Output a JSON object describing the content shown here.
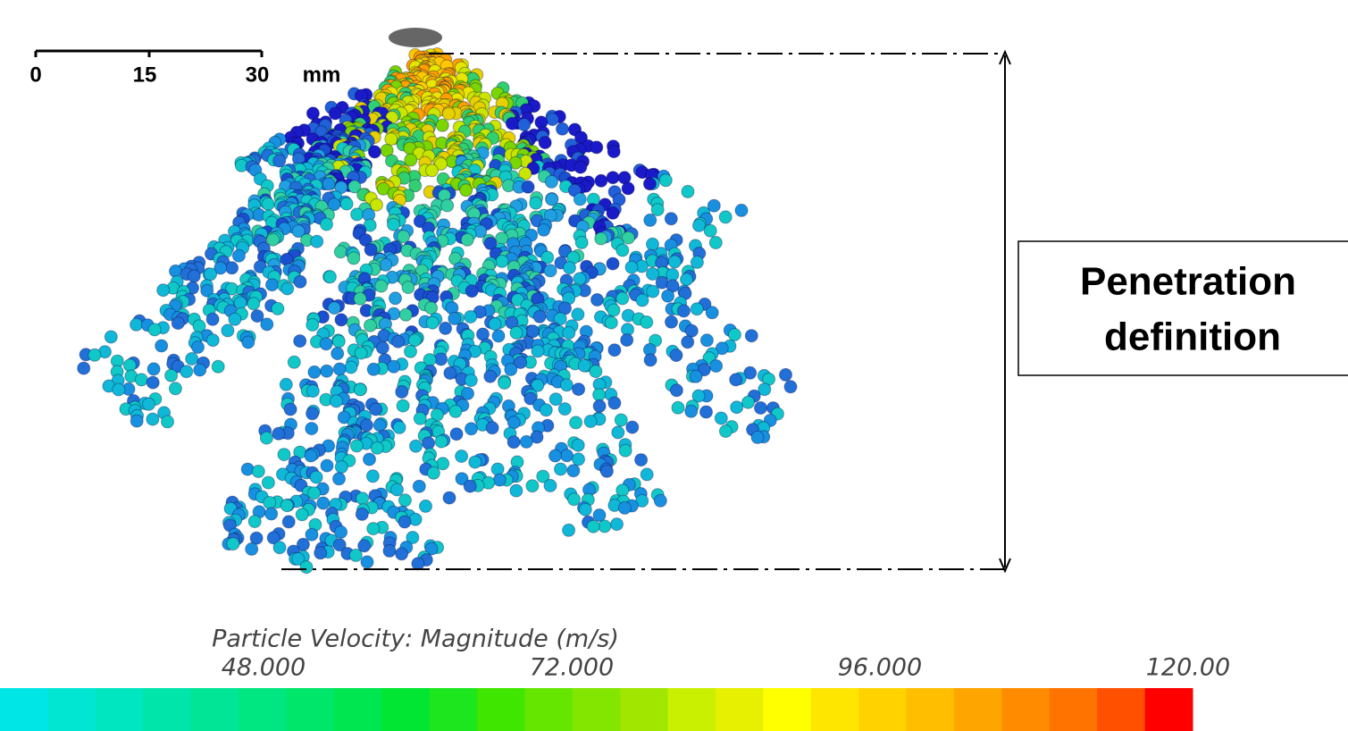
{
  "scale_bar": {
    "labels": [
      "0",
      "15",
      "30"
    ],
    "unit": "mm"
  },
  "annotation": {
    "lines": [
      "Penetration",
      "definition"
    ]
  },
  "colorbar": {
    "title": "Particle Velocity: Magnitude (m/s)",
    "labels": [
      "48.000",
      "72.000",
      "96.000",
      "120.00"
    ],
    "colors": [
      "#00e6e6",
      "#00e6d2",
      "#00e6c0",
      "#00e6aa",
      "#00e696",
      "#00e680",
      "#00e66a",
      "#00e650",
      "#00e632",
      "#1ee61e",
      "#3ee600",
      "#64e600",
      "#82e600",
      "#a0e600",
      "#c8f000",
      "#e6f000",
      "#ffff00",
      "#ffe600",
      "#ffd200",
      "#ffbe00",
      "#ffa500",
      "#ff8c00",
      "#ff7300",
      "#ff5000",
      "#ff0000"
    ]
  }
}
